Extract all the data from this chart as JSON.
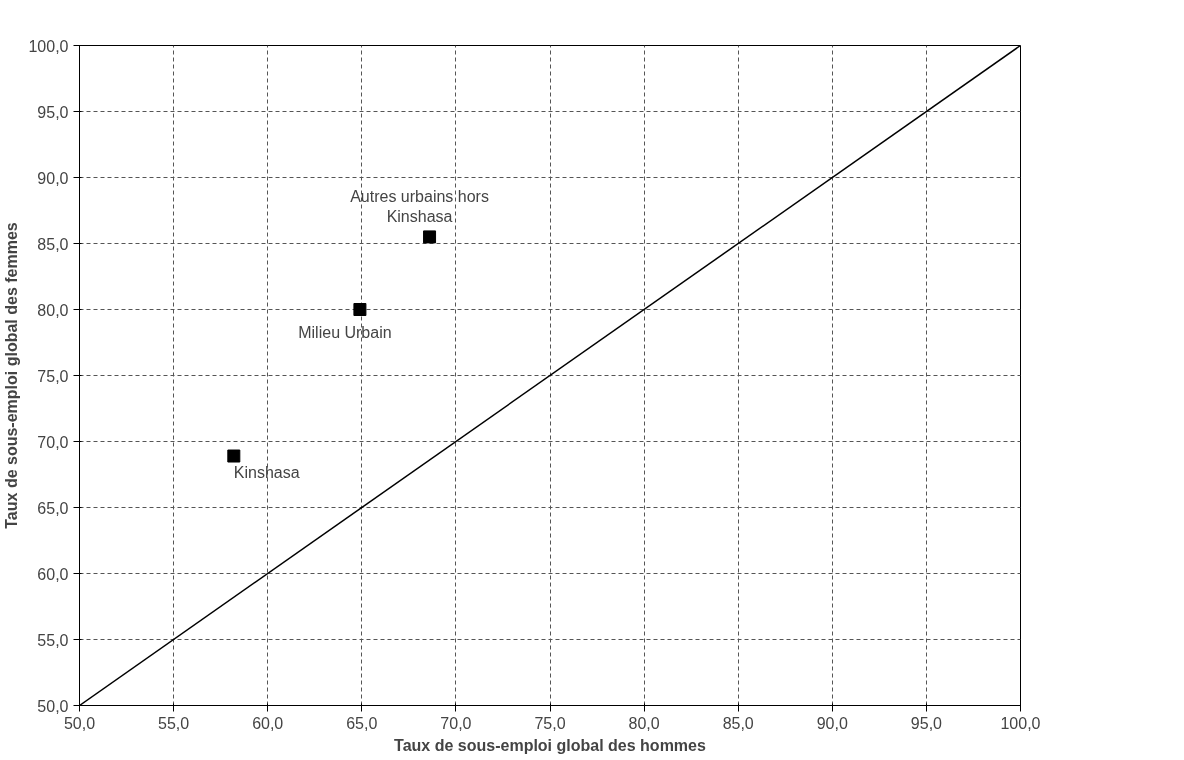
{
  "chart_data": {
    "type": "scatter",
    "xlabel": "Taux de sous-emploi global des hommes",
    "ylabel": "Taux de sous-emploi global des femmes",
    "xlim": [
      50,
      100
    ],
    "ylim": [
      50,
      100
    ],
    "xticks": [
      {
        "value": 50,
        "label": "50,0"
      },
      {
        "value": 55,
        "label": "55,0"
      },
      {
        "value": 60,
        "label": "60,0"
      },
      {
        "value": 65,
        "label": "65,0"
      },
      {
        "value": 70,
        "label": "70,0"
      },
      {
        "value": 75,
        "label": "75,0"
      },
      {
        "value": 80,
        "label": "80,0"
      },
      {
        "value": 85,
        "label": "85,0"
      },
      {
        "value": 90,
        "label": "90,0"
      },
      {
        "value": 95,
        "label": "95,0"
      },
      {
        "value": 100,
        "label": "100,0"
      }
    ],
    "yticks": [
      {
        "value": 50,
        "label": "50,0"
      },
      {
        "value": 55,
        "label": "55,0"
      },
      {
        "value": 60,
        "label": "60,0"
      },
      {
        "value": 65,
        "label": "65,0"
      },
      {
        "value": 70,
        "label": "70,0"
      },
      {
        "value": 75,
        "label": "75,0"
      },
      {
        "value": 80,
        "label": "80,0"
      },
      {
        "value": 85,
        "label": "85,0"
      },
      {
        "value": 90,
        "label": "90,0"
      },
      {
        "value": 95,
        "label": "95,0"
      },
      {
        "value": 100,
        "label": "100,0"
      }
    ],
    "grid": true,
    "marker": "square",
    "series": [
      {
        "color": "#000000",
        "x": [
          58.2,
          64.9,
          68.6
        ],
        "values": [
          68.9,
          80.0,
          85.5
        ]
      },
      {
        "type": "line",
        "color": "#000000",
        "x": [
          50,
          100
        ],
        "values": [
          50,
          100
        ],
        "line_style": "solid",
        "marker": "none"
      }
    ],
    "annotations": [
      {
        "text": "Kinshasa",
        "x": 58.2,
        "y": 68.9
      },
      {
        "text": "Milieu Urbain",
        "x": 64.9,
        "y": 80.0
      },
      {
        "text": "Autres urbains hors\nKinshasa",
        "x": 68.6,
        "y": 85.5
      }
    ]
  }
}
